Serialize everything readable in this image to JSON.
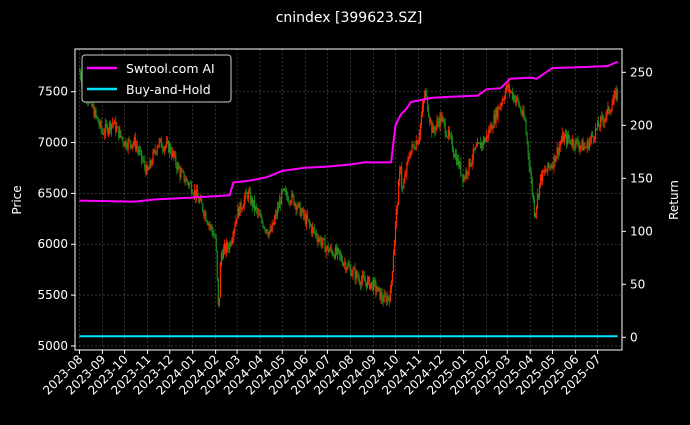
{
  "chart_data": {
    "type": "line",
    "title": "cnindex [399623.SZ]",
    "ylabel": "Price",
    "y2label": "Return",
    "ylim": [
      4960,
      7920
    ],
    "y2lim": [
      -12,
      272
    ],
    "xlim": [
      "2023-07-26",
      "2025-08-03"
    ],
    "yticks": [
      5000,
      5500,
      6000,
      6500,
      7000,
      7500
    ],
    "y2ticks": [
      0,
      50,
      100,
      150,
      200,
      250
    ],
    "xticks": [
      "2023-08",
      "2023-09",
      "2023-10",
      "2023-11",
      "2023-12",
      "2024-01",
      "2024-02",
      "2024-03",
      "2024-04",
      "2024-05",
      "2024-06",
      "2024-07",
      "2024-08",
      "2024-09",
      "2024-10",
      "2024-11",
      "2024-12",
      "2025-01",
      "2025-02",
      "2025-03",
      "2025-04",
      "2025-05",
      "2025-06",
      "2025-07"
    ],
    "grid": true,
    "legend": "top-left",
    "price": {
      "x": [
        "2023-08-01",
        "2023-08-15",
        "2023-09-01",
        "2023-09-15",
        "2023-10-01",
        "2023-10-15",
        "2023-11-01",
        "2023-11-15",
        "2023-12-01",
        "2023-12-15",
        "2024-01-01",
        "2024-01-15",
        "2024-02-01",
        "2024-02-05",
        "2024-02-08",
        "2024-02-20",
        "2024-03-01",
        "2024-03-15",
        "2024-04-01",
        "2024-04-15",
        "2024-05-01",
        "2024-05-15",
        "2024-06-01",
        "2024-06-15",
        "2024-07-01",
        "2024-07-15",
        "2024-08-01",
        "2024-08-15",
        "2024-09-01",
        "2024-09-15",
        "2024-09-24",
        "2024-09-30",
        "2024-10-08",
        "2024-10-10",
        "2024-10-20",
        "2024-11-01",
        "2024-11-10",
        "2024-11-20",
        "2024-12-01",
        "2024-12-15",
        "2025-01-01",
        "2025-01-15",
        "2025-02-01",
        "2025-02-15",
        "2025-03-01",
        "2025-03-15",
        "2025-03-25",
        "2025-04-07",
        "2025-04-15",
        "2025-05-01",
        "2025-05-15",
        "2025-06-01",
        "2025-06-15",
        "2025-07-01",
        "2025-07-15",
        "2025-07-28"
      ],
      "y": [
        7700,
        7400,
        7100,
        7200,
        7000,
        7000,
        6700,
        7000,
        6950,
        6700,
        6550,
        6350,
        6050,
        5300,
        5900,
        6000,
        6300,
        6500,
        6250,
        6100,
        6500,
        6450,
        6250,
        6100,
        5950,
        5900,
        5750,
        5650,
        5600,
        5450,
        5500,
        6100,
        6800,
        6500,
        6900,
        7050,
        7500,
        7100,
        7250,
        7000,
        6650,
        6900,
        7050,
        7300,
        7550,
        7400,
        7200,
        6300,
        6650,
        6800,
        7050,
        7000,
        6950,
        7150,
        7300,
        7500
      ]
    },
    "colors": {
      "up": "#ff2a00",
      "down": "#1a8a1a"
    },
    "series": [
      {
        "name": "Swtool.com AI",
        "color": "#ff00ff",
        "x": [
          "2023-08-01",
          "2023-10-15",
          "2023-11-10",
          "2024-01-05",
          "2024-02-20",
          "2024-02-25",
          "2024-03-20",
          "2024-04-10",
          "2024-05-01",
          "2024-06-01",
          "2024-07-01",
          "2024-08-01",
          "2024-08-20",
          "2024-09-25",
          "2024-10-01",
          "2024-10-08",
          "2024-10-15",
          "2024-10-22",
          "2024-11-20",
          "2024-12-15",
          "2025-01-20",
          "2025-02-01",
          "2025-02-20",
          "2025-03-05",
          "2025-04-01",
          "2025-04-10",
          "2025-04-20",
          "2025-05-01",
          "2025-06-15",
          "2025-07-15",
          "2025-07-28"
        ],
        "y": [
          129,
          128,
          130,
          132,
          134,
          146,
          148,
          151,
          157,
          160,
          161,
          163,
          165,
          165,
          200,
          210,
          215,
          222,
          226,
          227,
          228,
          234,
          235,
          244,
          245,
          244,
          249,
          254,
          255,
          256,
          260
        ]
      },
      {
        "name": "Buy-and-Hold",
        "color": "#00e5ff",
        "x": [
          "2023-08-01",
          "2025-07-28"
        ],
        "y": [
          1,
          1
        ]
      }
    ]
  }
}
